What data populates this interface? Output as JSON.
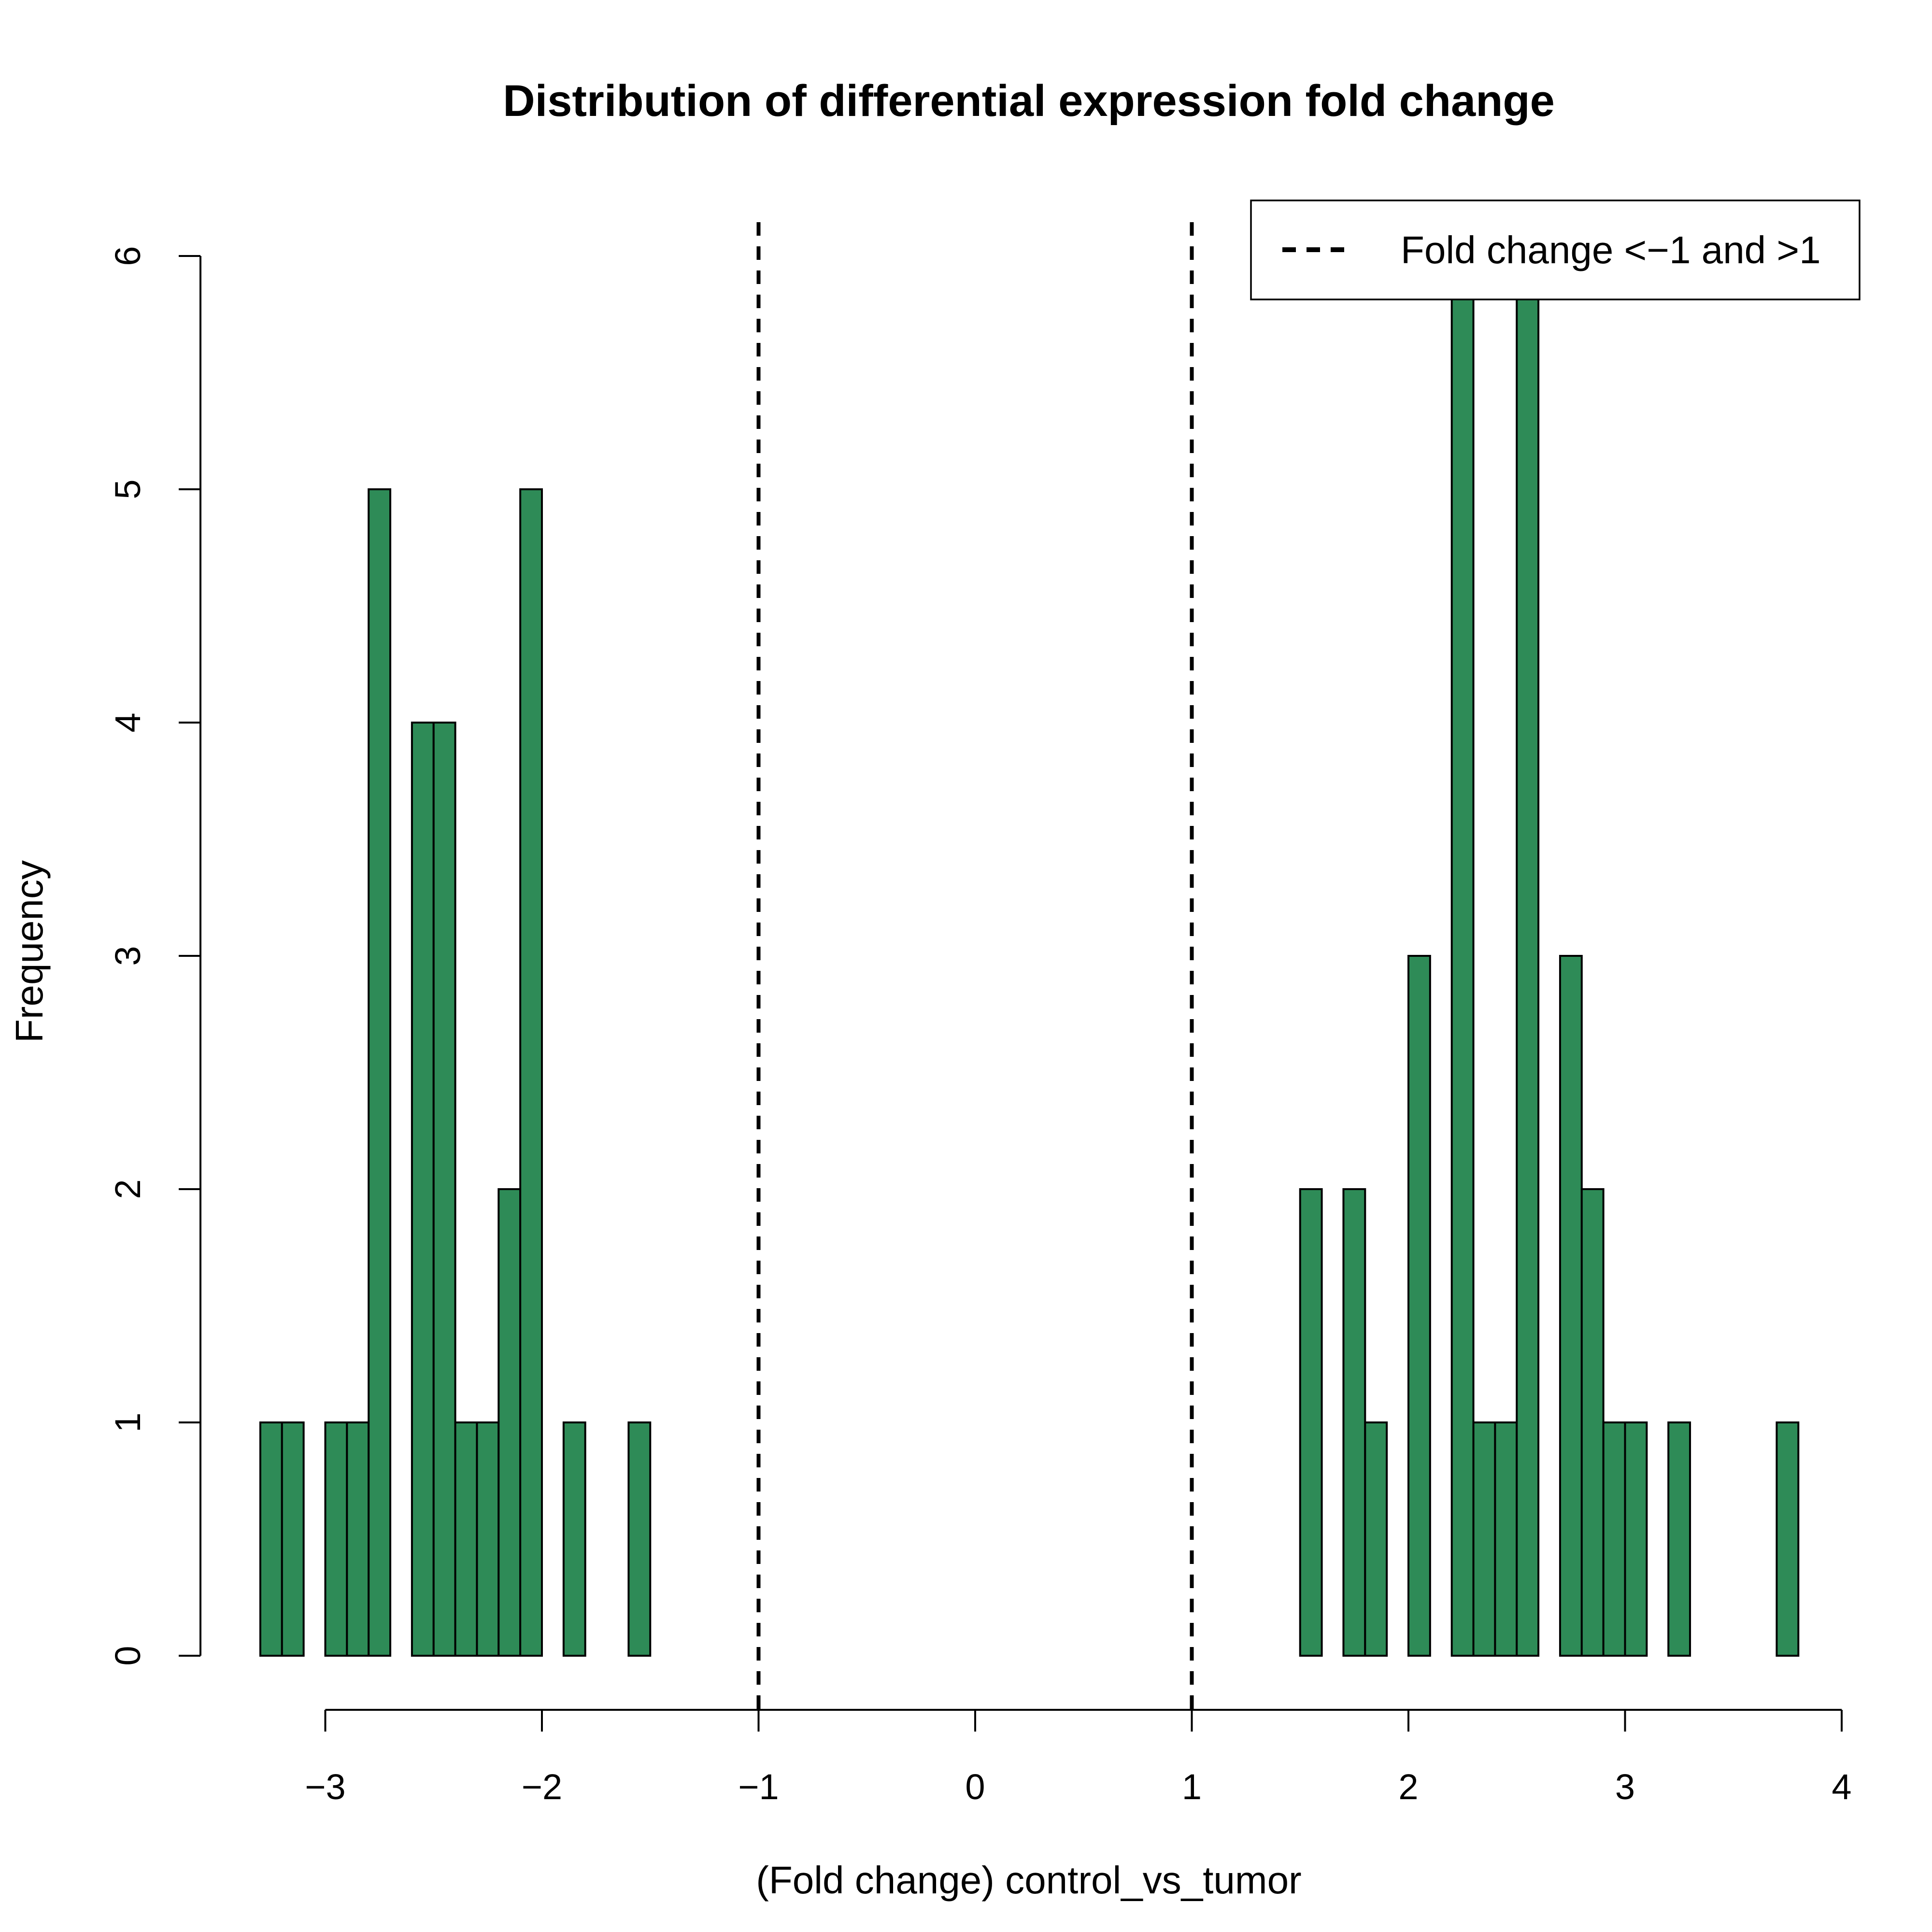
{
  "chart_data": {
    "type": "bar",
    "title": "Distribution of differential expression fold change",
    "xlabel": "(Fold change) control_vs_tumor",
    "ylabel": "Frequency",
    "xlim": [
      -3.3,
      3.8
    ],
    "ylim": [
      0,
      6
    ],
    "x_ticks": [
      -3,
      -2,
      -1,
      0,
      1,
      2,
      3,
      4
    ],
    "x_tick_labels": [
      "−3",
      "−2",
      "−1",
      "0",
      "1",
      "2",
      "3",
      "4"
    ],
    "y_ticks": [
      0,
      1,
      2,
      3,
      4,
      5,
      6
    ],
    "y_tick_labels": [
      "0",
      "1",
      "2",
      "3",
      "4",
      "5",
      "6"
    ],
    "bin_width": 0.1,
    "bins": [
      {
        "x0": -3.3,
        "x1": -3.2,
        "count": 1
      },
      {
        "x0": -3.2,
        "x1": -3.1,
        "count": 1
      },
      {
        "x0": -3.1,
        "x1": -3.0,
        "count": 0
      },
      {
        "x0": -3.0,
        "x1": -2.9,
        "count": 1
      },
      {
        "x0": -2.9,
        "x1": -2.8,
        "count": 1
      },
      {
        "x0": -2.8,
        "x1": -2.7,
        "count": 5
      },
      {
        "x0": -2.7,
        "x1": -2.6,
        "count": 0
      },
      {
        "x0": -2.6,
        "x1": -2.5,
        "count": 4
      },
      {
        "x0": -2.5,
        "x1": -2.4,
        "count": 4
      },
      {
        "x0": -2.4,
        "x1": -2.3,
        "count": 1
      },
      {
        "x0": -2.3,
        "x1": -2.2,
        "count": 1
      },
      {
        "x0": -2.2,
        "x1": -2.1,
        "count": 2
      },
      {
        "x0": -2.1,
        "x1": -2.0,
        "count": 5
      },
      {
        "x0": -2.0,
        "x1": -1.9,
        "count": 0
      },
      {
        "x0": -1.9,
        "x1": -1.8,
        "count": 1
      },
      {
        "x0": -1.8,
        "x1": -1.7,
        "count": 0
      },
      {
        "x0": -1.7,
        "x1": -1.6,
        "count": 0
      },
      {
        "x0": -1.6,
        "x1": -1.5,
        "count": 1
      },
      {
        "x0": -1.5,
        "x1": 1.5,
        "count": 0
      },
      {
        "x0": 1.5,
        "x1": 1.6,
        "count": 2
      },
      {
        "x0": 1.6,
        "x1": 1.7,
        "count": 0
      },
      {
        "x0": 1.7,
        "x1": 1.8,
        "count": 2
      },
      {
        "x0": 1.8,
        "x1": 1.9,
        "count": 1
      },
      {
        "x0": 1.9,
        "x1": 2.0,
        "count": 0
      },
      {
        "x0": 2.0,
        "x1": 2.1,
        "count": 3
      },
      {
        "x0": 2.1,
        "x1": 2.2,
        "count": 0
      },
      {
        "x0": 2.2,
        "x1": 2.3,
        "count": 6
      },
      {
        "x0": 2.3,
        "x1": 2.4,
        "count": 1
      },
      {
        "x0": 2.4,
        "x1": 2.5,
        "count": 1
      },
      {
        "x0": 2.5,
        "x1": 2.6,
        "count": 6
      },
      {
        "x0": 2.6,
        "x1": 2.7,
        "count": 0
      },
      {
        "x0": 2.7,
        "x1": 2.8,
        "count": 3
      },
      {
        "x0": 2.8,
        "x1": 2.9,
        "count": 2
      },
      {
        "x0": 2.9,
        "x1": 3.0,
        "count": 1
      },
      {
        "x0": 3.0,
        "x1": 3.1,
        "count": 1
      },
      {
        "x0": 3.1,
        "x1": 3.2,
        "count": 0
      },
      {
        "x0": 3.2,
        "x1": 3.3,
        "count": 1
      },
      {
        "x0": 3.3,
        "x1": 3.7,
        "count": 0
      },
      {
        "x0": 3.7,
        "x1": 3.8,
        "count": 1
      }
    ],
    "bar_color": "#2E8B57",
    "bar_edge_color": "#000000",
    "reference_lines": [
      {
        "x": -1,
        "style": "dashed"
      },
      {
        "x": 1,
        "style": "dashed"
      }
    ],
    "legend": {
      "placement": "top-right",
      "entries": [
        {
          "label": "Fold change <−1 and >1",
          "style": "dashed"
        }
      ]
    },
    "grid": false
  }
}
